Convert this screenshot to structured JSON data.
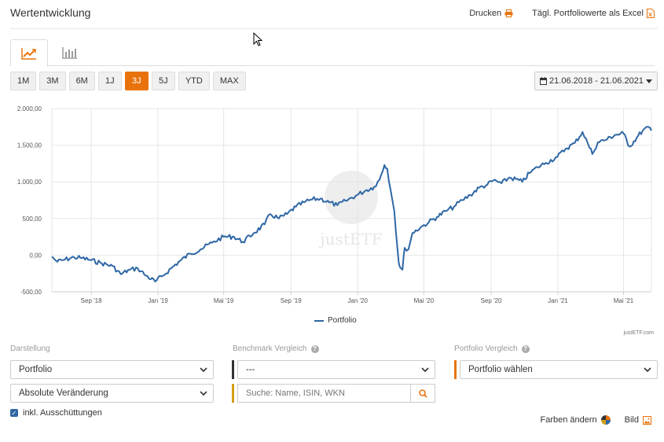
{
  "header": {
    "title": "Wertentwicklung",
    "print_label": "Drucken",
    "excel_label": "Tägl. Portfoliowerte als Excel"
  },
  "view_tabs": [
    {
      "icon": "line-chart-icon",
      "active": true
    },
    {
      "icon": "bar-chart-icon",
      "active": false
    }
  ],
  "range_buttons": [
    "1M",
    "3M",
    "6M",
    "1J",
    "3J",
    "5J",
    "YTD",
    "MAX"
  ],
  "active_range": "3J",
  "date_range": "21.06.2018 - 21.06.2021",
  "colors": {
    "accent": "#e8730c",
    "series": "#2f67a5",
    "benchmark_bar": "#333333",
    "search_bar": "#d4a017",
    "portfolio_bar": "#e8730c"
  },
  "chart_data": {
    "type": "line",
    "x_ticks": [
      "Sep '18",
      "Jan '19",
      "Mai '19",
      "Sep '19",
      "Jan '20",
      "Mai '20",
      "Sep '20",
      "Jan '21",
      "Mai '21"
    ],
    "y_ticks": [
      "2.000,00",
      "1.500,00",
      "1.000,00",
      "500,00",
      "0,00",
      "-500,00"
    ],
    "ylim": [
      -500,
      2000
    ],
    "x_domain": [
      "2018-06-21",
      "2021-06-21"
    ],
    "grid": true,
    "legend_position": "bottom-center",
    "series": [
      {
        "name": "Portfolio",
        "points": [
          [
            "2018-06-21",
            -20
          ],
          [
            "2018-07-01",
            -90
          ],
          [
            "2018-07-15",
            -60
          ],
          [
            "2018-08-01",
            -30
          ],
          [
            "2018-08-15",
            -40
          ],
          [
            "2018-09-01",
            -70
          ],
          [
            "2018-09-20",
            -110
          ],
          [
            "2018-10-10",
            -150
          ],
          [
            "2018-10-25",
            -260
          ],
          [
            "2018-11-10",
            -200
          ],
          [
            "2018-11-25",
            -180
          ],
          [
            "2018-12-10",
            -280
          ],
          [
            "2018-12-27",
            -360
          ],
          [
            "2019-01-10",
            -280
          ],
          [
            "2019-01-25",
            -180
          ],
          [
            "2019-02-10",
            -80
          ],
          [
            "2019-03-01",
            20
          ],
          [
            "2019-03-20",
            80
          ],
          [
            "2019-04-10",
            170
          ],
          [
            "2019-05-01",
            250
          ],
          [
            "2019-05-20",
            250
          ],
          [
            "2019-06-05",
            180
          ],
          [
            "2019-06-25",
            300
          ],
          [
            "2019-07-15",
            420
          ],
          [
            "2019-07-25",
            560
          ],
          [
            "2019-08-10",
            500
          ],
          [
            "2019-08-25",
            560
          ],
          [
            "2019-09-10",
            660
          ],
          [
            "2019-09-25",
            720
          ],
          [
            "2019-10-10",
            760
          ],
          [
            "2019-10-25",
            770
          ],
          [
            "2019-11-10",
            720
          ],
          [
            "2019-11-25",
            680
          ],
          [
            "2019-12-10",
            740
          ],
          [
            "2019-12-31",
            820
          ],
          [
            "2020-01-15",
            880
          ],
          [
            "2020-01-31",
            930
          ],
          [
            "2020-02-10",
            1030
          ],
          [
            "2020-02-19",
            1230
          ],
          [
            "2020-02-24",
            1180
          ],
          [
            "2020-03-01",
            900
          ],
          [
            "2020-03-08",
            600
          ],
          [
            "2020-03-16",
            -100
          ],
          [
            "2020-03-20",
            -180
          ],
          [
            "2020-03-23",
            -200
          ],
          [
            "2020-03-27",
            100
          ],
          [
            "2020-04-03",
            80
          ],
          [
            "2020-04-10",
            300
          ],
          [
            "2020-04-25",
            380
          ],
          [
            "2020-05-10",
            450
          ],
          [
            "2020-05-25",
            520
          ],
          [
            "2020-06-10",
            600
          ],
          [
            "2020-06-25",
            660
          ],
          [
            "2020-07-10",
            750
          ],
          [
            "2020-07-25",
            820
          ],
          [
            "2020-08-10",
            920
          ],
          [
            "2020-08-25",
            960
          ],
          [
            "2020-09-05",
            1020
          ],
          [
            "2020-09-20",
            980
          ],
          [
            "2020-10-05",
            1060
          ],
          [
            "2020-10-28",
            1000
          ],
          [
            "2020-11-10",
            1120
          ],
          [
            "2020-11-25",
            1200
          ],
          [
            "2020-12-10",
            1260
          ],
          [
            "2020-12-31",
            1340
          ],
          [
            "2021-01-15",
            1450
          ],
          [
            "2021-02-01",
            1530
          ],
          [
            "2021-02-15",
            1680
          ],
          [
            "2021-02-25",
            1520
          ],
          [
            "2021-03-05",
            1380
          ],
          [
            "2021-03-15",
            1540
          ],
          [
            "2021-04-01",
            1580
          ],
          [
            "2021-04-15",
            1640
          ],
          [
            "2021-05-01",
            1660
          ],
          [
            "2021-05-12",
            1480
          ],
          [
            "2021-05-25",
            1600
          ],
          [
            "2021-06-05",
            1700
          ],
          [
            "2021-06-15",
            1750
          ],
          [
            "2021-06-21",
            1700
          ]
        ]
      }
    ],
    "watermark": "justETF",
    "credit": "justETF.com"
  },
  "controls": {
    "display_label": "Darstellung",
    "display_select": "Portfolio",
    "change_select": "Absolute Veränderung",
    "benchmark_label": "Benchmark Vergleich",
    "benchmark_select": "---",
    "search_placeholder": "Suche: Name, ISIN, WKN",
    "portfolio_label": "Portfolio Vergleich",
    "portfolio_select": "Portfolio wählen",
    "distributions_label": "inkl. Ausschüttungen",
    "distributions_checked": true
  },
  "footer_actions": {
    "colors_label": "Farben ändern",
    "image_label": "Bild"
  }
}
